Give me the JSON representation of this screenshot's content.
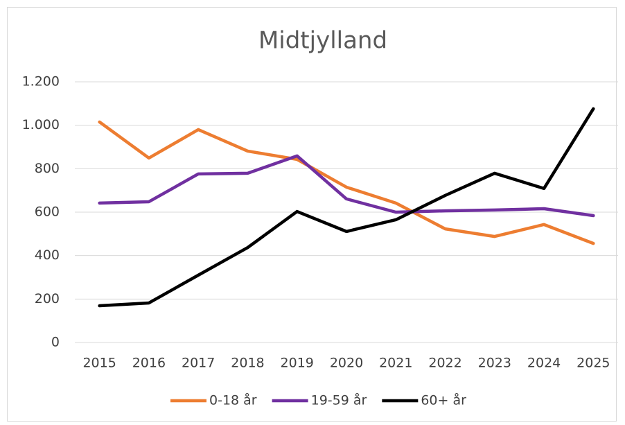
{
  "chart_data": {
    "type": "line",
    "title": "Midtjylland",
    "categories": [
      "2015",
      "2016",
      "2017",
      "2018",
      "2019",
      "2020",
      "2021",
      "2022",
      "2023",
      "2024",
      "2025"
    ],
    "series": [
      {
        "name": "0-18 år",
        "color": "#ed7d31",
        "values": [
          1015,
          849,
          980,
          881,
          843,
          715,
          642,
          523,
          488,
          543,
          456
        ]
      },
      {
        "name": "19-59 år",
        "color": "#7030a0",
        "values": [
          642,
          648,
          776,
          779,
          859,
          661,
          600,
          606,
          610,
          616,
          584
        ]
      },
      {
        "name": "60+ år",
        "color": "#000000",
        "values": [
          169,
          182,
          310,
          437,
          603,
          511,
          565,
          677,
          779,
          709,
          1076
        ]
      }
    ],
    "ylim": [
      0,
      1200
    ],
    "yticks": [
      0,
      200,
      400,
      600,
      800,
      {
        "value": 1000,
        "label": "1.000"
      },
      {
        "value": 1200,
        "label": "1.200"
      }
    ],
    "grid": true,
    "legend": "bottom"
  }
}
